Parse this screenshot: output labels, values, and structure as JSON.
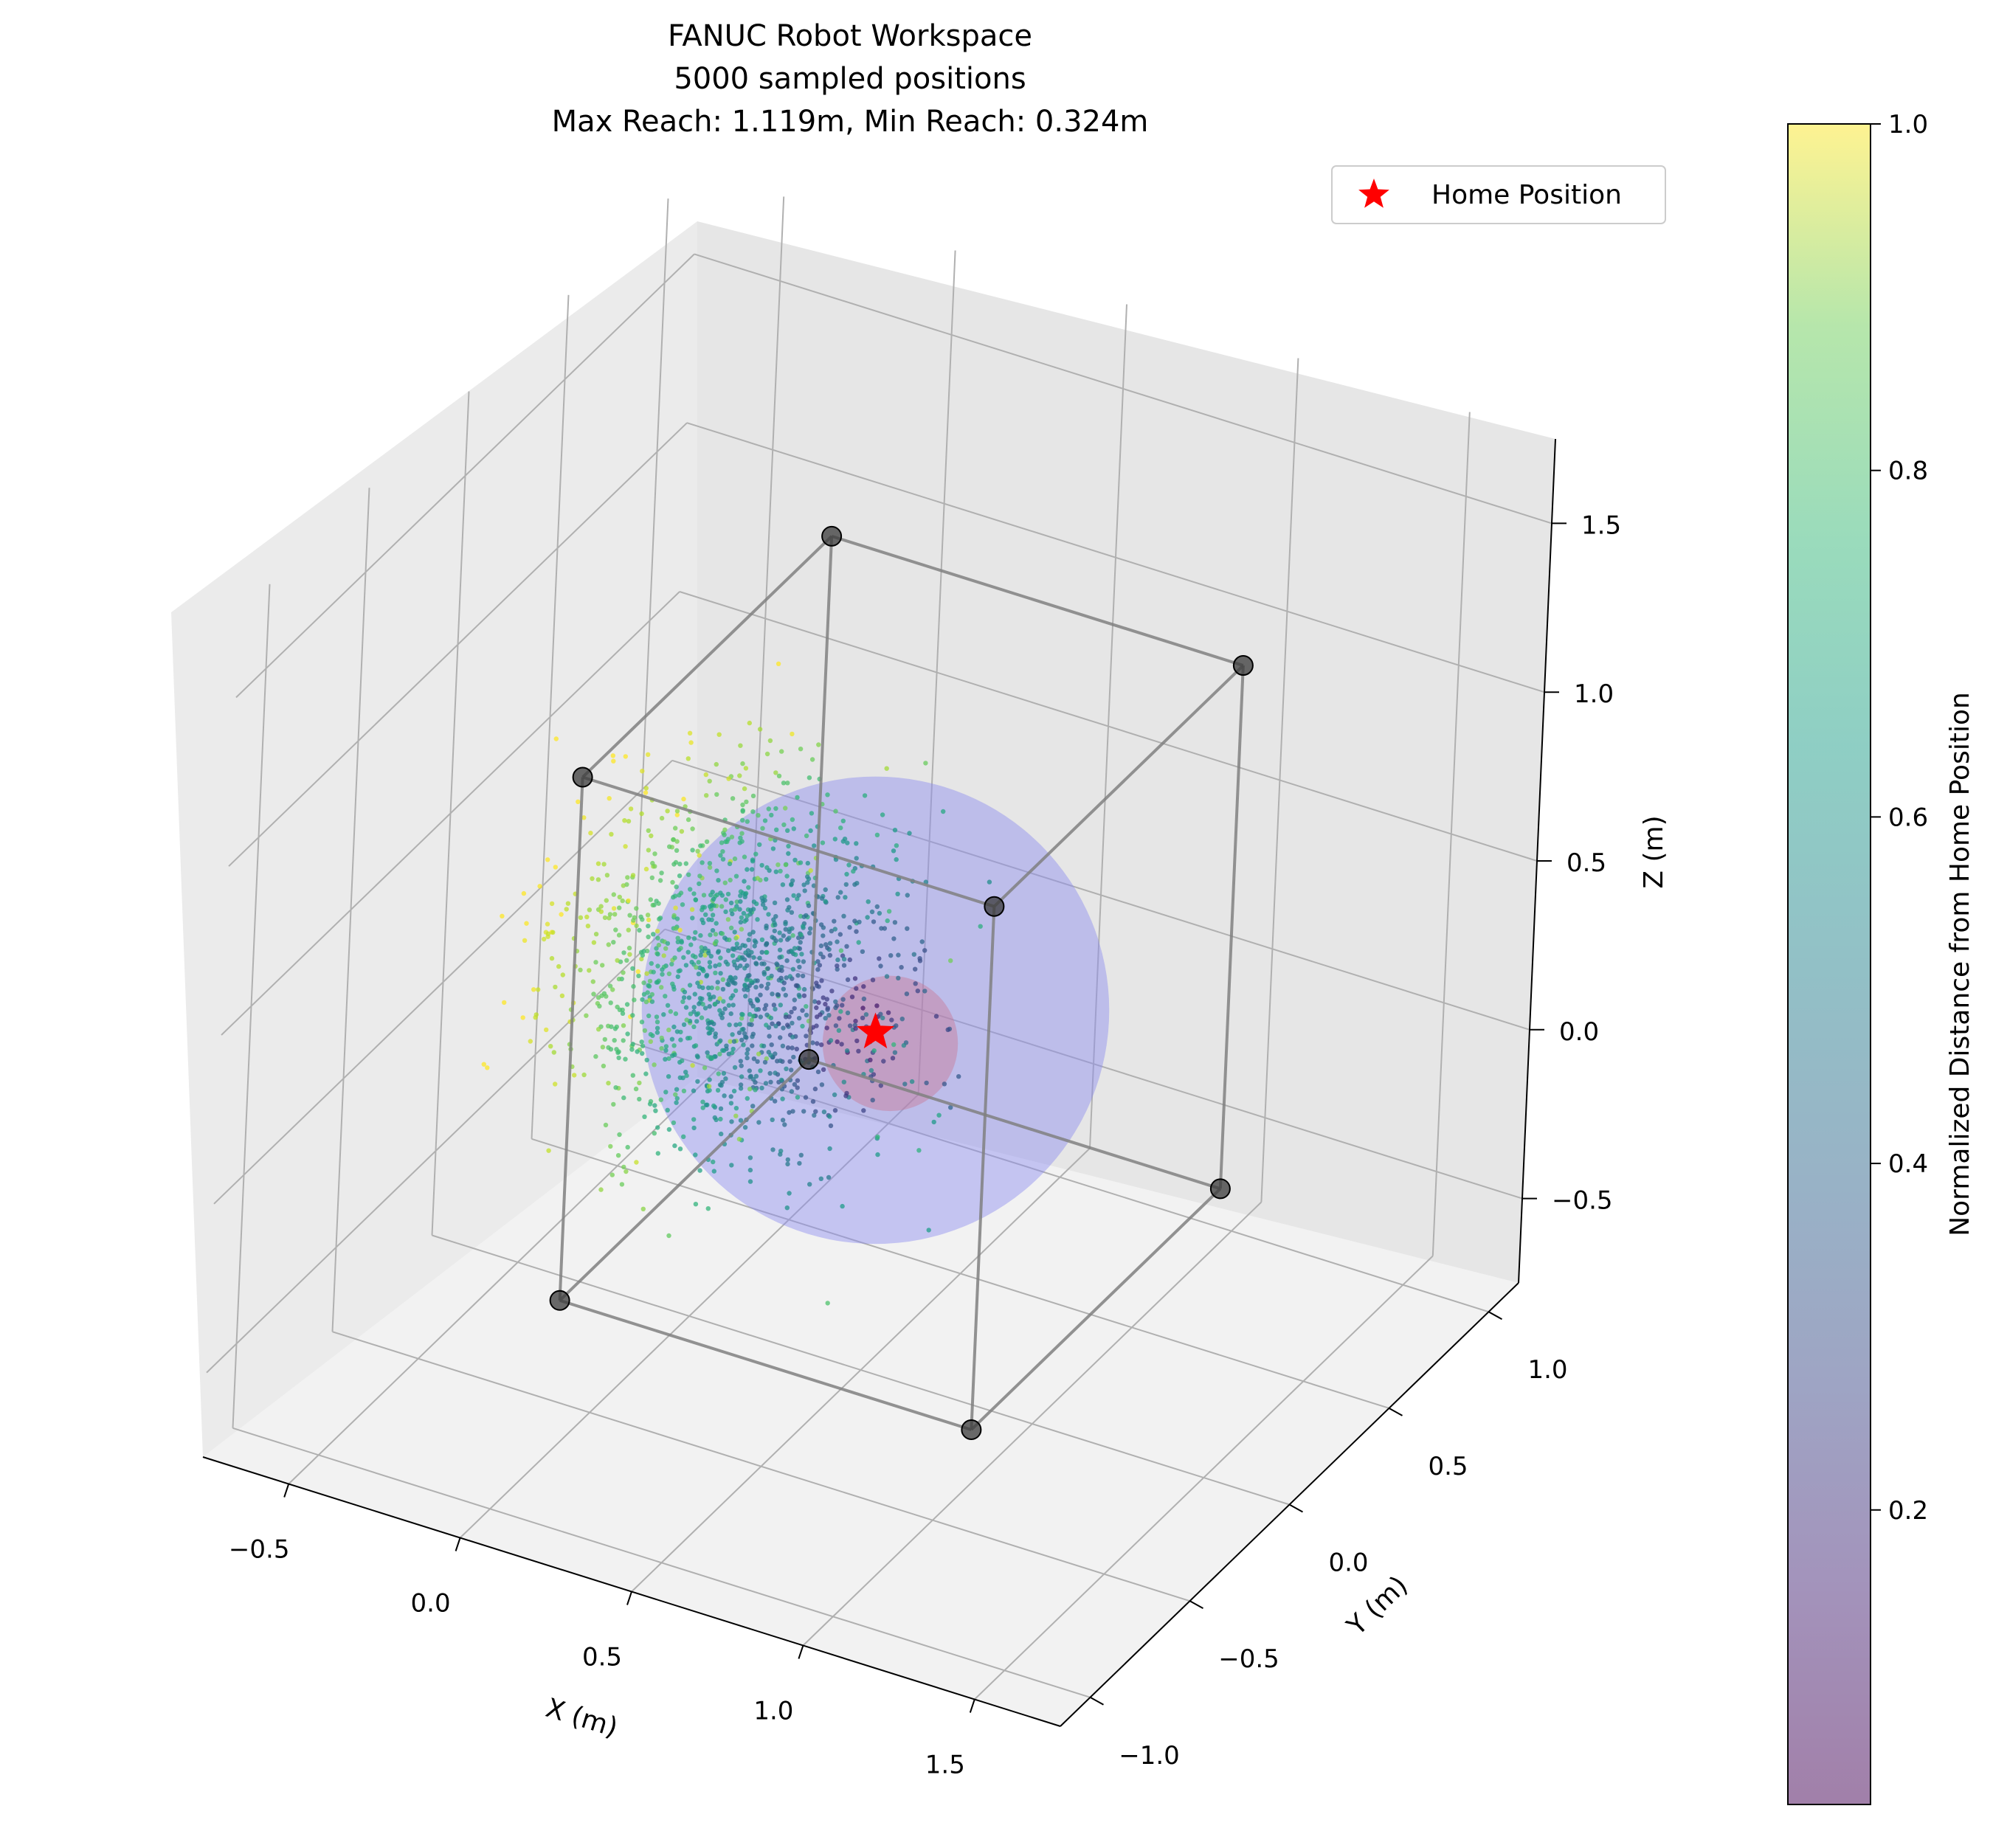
{
  "chart_data": {
    "type": "scatter",
    "title_lines": [
      "FANUC Robot Workspace",
      "5000 sampled positions",
      "Max Reach: 1.119m, Min Reach: 0.324m"
    ],
    "xlabel": "X (m)",
    "ylabel": "Y (m)",
    "zlabel": "Z (m)",
    "xlim": [
      -0.75,
      1.75
    ],
    "ylim": [
      -1.15,
      1.15
    ],
    "zlim": [
      -0.75,
      1.75
    ],
    "x_ticks": [
      "−0.5",
      "0.0",
      "0.5",
      "1.0",
      "1.5"
    ],
    "y_ticks": [
      "−1.0",
      "−0.5",
      "0.0",
      "0.5",
      "1.0"
    ],
    "z_ticks": [
      "−0.5",
      "0.0",
      "0.5",
      "1.0",
      "1.5"
    ],
    "grid": true,
    "legend_position": "top-right",
    "legend_label": "Home Position",
    "home_position": {
      "x": 0.5,
      "y": 0.0,
      "z": 0.25
    },
    "sample_count": 5000,
    "max_reach_m": 1.119,
    "min_reach_m": 0.324,
    "sample_center": {
      "x": 0.1,
      "y": 0.0,
      "z": 0.3
    },
    "box_corners": [
      {
        "x": -0.1,
        "y": -0.5,
        "z": -0.45
      },
      {
        "x": 1.1,
        "y": -0.5,
        "z": -0.45
      },
      {
        "x": 1.1,
        "y": 0.75,
        "z": -0.45
      },
      {
        "x": -0.1,
        "y": 0.75,
        "z": -0.45
      },
      {
        "x": -0.1,
        "y": -0.5,
        "z": 1.1
      },
      {
        "x": 1.1,
        "y": -0.5,
        "z": 1.1
      },
      {
        "x": 1.1,
        "y": 0.75,
        "z": 1.1
      },
      {
        "x": -0.1,
        "y": 0.75,
        "z": 1.1
      }
    ],
    "colorbar": {
      "label": "Normalized Distance from Home Position",
      "range": [
        0.03,
        1.0
      ],
      "ticks": [
        "0.2",
        "0.4",
        "0.6",
        "0.8",
        "1.0"
      ],
      "tick_values": [
        0.2,
        0.4,
        0.6,
        0.8,
        1.0
      ],
      "colormap": "viridis"
    },
    "colors": {
      "max_sphere": "#8c8cf0",
      "min_sphere": "#c87896",
      "home_marker": "#ff0000",
      "box_line": "#808080",
      "box_corner": "#3a3a3a"
    }
  }
}
